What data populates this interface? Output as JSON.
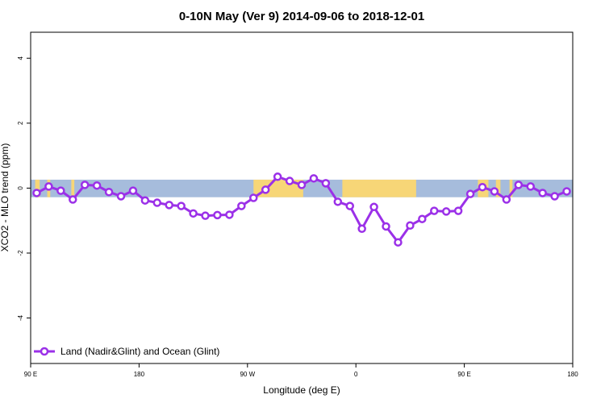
{
  "chart_data": {
    "type": "line",
    "title": "0-10N May (Ver 9)   2014-09-06 to 2018-12-01",
    "xlabel": "Longitude (deg E)",
    "ylabel": "XCO2 - MLO trend (ppm)",
    "x_axis_start": 90,
    "xlim": [
      0,
      360
    ],
    "ylim": [
      -5.4,
      4.8
    ],
    "x_ticks": [
      {
        "value": 0,
        "label": "90 E"
      },
      {
        "value": 72,
        "label": "180"
      },
      {
        "value": 144,
        "label": "90 W"
      },
      {
        "value": 216,
        "label": "0"
      },
      {
        "value": 288,
        "label": "90 E"
      },
      {
        "value": 360,
        "label": "180"
      }
    ],
    "y_ticks": [
      {
        "value": -4,
        "label": "-4"
      },
      {
        "value": -2,
        "label": "-2"
      },
      {
        "value": 0,
        "label": "0"
      },
      {
        "value": 2,
        "label": "2"
      },
      {
        "value": 4,
        "label": "4"
      }
    ],
    "grid": false,
    "legend_position": "bottom-left",
    "series": [
      {
        "name": "Land (Nadir&Glint) and Ocean (Glint)",
        "color": "#9b30e8",
        "marker": "open-circle",
        "x": [
          4,
          12,
          20,
          28,
          36,
          44,
          52,
          60,
          68,
          76,
          84,
          92,
          100,
          108,
          116,
          124,
          132,
          140,
          148,
          156,
          164,
          172,
          180,
          188,
          196,
          204,
          212,
          220,
          228,
          236,
          244,
          252,
          260,
          268,
          276,
          284,
          292,
          300,
          308,
          316,
          324,
          332,
          340,
          348,
          356
        ],
        "values": [
          -0.15,
          0.05,
          -0.08,
          -0.35,
          0.1,
          0.08,
          -0.12,
          -0.25,
          -0.08,
          -0.38,
          -0.45,
          -0.52,
          -0.55,
          -0.78,
          -0.85,
          -0.83,
          -0.82,
          -0.55,
          -0.3,
          -0.05,
          0.35,
          0.22,
          0.1,
          0.3,
          0.15,
          -0.42,
          -0.55,
          -1.25,
          -0.58,
          -1.18,
          -1.67,
          -1.15,
          -0.95,
          -0.7,
          -0.72,
          -0.7,
          -0.18,
          0.03,
          -0.1,
          -0.35,
          0.1,
          0.05,
          -0.15,
          -0.25,
          -0.1
        ]
      }
    ],
    "background_band": {
      "ylim": [
        -0.28,
        0.26
      ],
      "ocean_color": "#a6bcdc",
      "land_color": "#f7d677",
      "land_spans": [
        [
          3,
          6
        ],
        [
          11,
          13
        ],
        [
          27,
          29
        ],
        [
          148,
          181
        ],
        [
          207,
          256
        ],
        [
          297,
          304
        ],
        [
          309,
          312
        ],
        [
          318,
          320
        ]
      ]
    }
  }
}
